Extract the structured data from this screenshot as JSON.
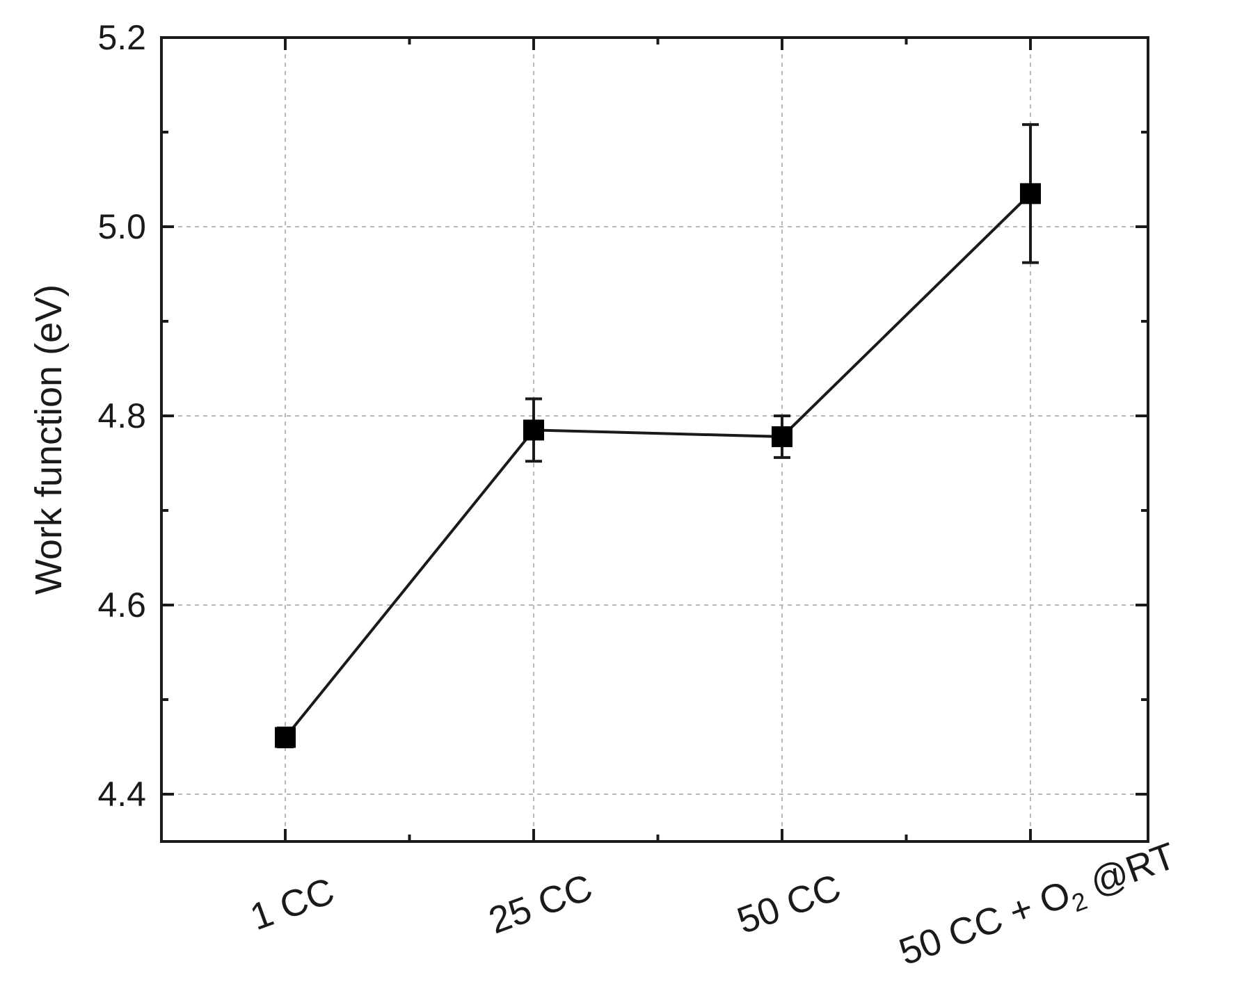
{
  "chart_data": {
    "type": "line",
    "title": "",
    "xlabel": "",
    "ylabel": "Work function (eV)",
    "ylim": [
      4.35,
      5.2
    ],
    "yticks": [
      "4.4",
      "4.6",
      "4.8",
      "5.0",
      "5.2"
    ],
    "grid": true,
    "categories": [
      {
        "label": "1 CC",
        "sub": "",
        "suffix": ""
      },
      {
        "label": "25 CC",
        "sub": "",
        "suffix": ""
      },
      {
        "label": "50 CC",
        "sub": "",
        "suffix": ""
      },
      {
        "label": "50 CC + O",
        "sub": "2",
        "suffix": " @RT"
      }
    ],
    "series": [
      {
        "values": [
          4.46,
          4.785,
          4.778,
          5.035
        ],
        "errors": [
          0.01,
          0.033,
          0.022,
          0.073
        ],
        "color": "#000000",
        "marker": "square"
      }
    ]
  }
}
